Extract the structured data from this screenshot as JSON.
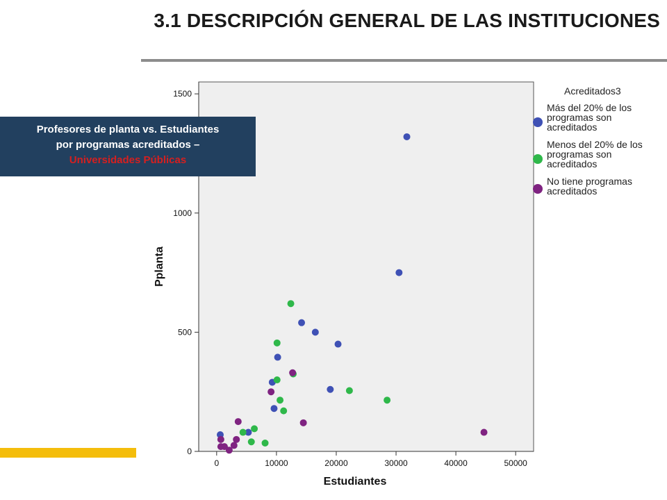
{
  "slide": {
    "title": "3.1 DESCRIPCIÓN GENERAL DE LAS INSTITUCIONES",
    "caption_line1": "Profesores de planta vs. Estudiantes",
    "caption_line2": "por programas acreditados –",
    "caption_highlight": "Universidades Públicas"
  },
  "colors": {
    "accent": "#f4bd0b",
    "caption_bg": "#22405f",
    "highlight": "#d61f1f",
    "plot_bg": "#efefef",
    "series_blue": "#3f51b5",
    "series_green": "#2fb84a",
    "series_purple": "#7f2381"
  },
  "chart_data": {
    "type": "scatter",
    "title": "",
    "xlabel": "Estudiantes",
    "ylabel": "Pplanta",
    "xlim": [
      -3000,
      53000
    ],
    "ylim": [
      0,
      1550
    ],
    "xticks": [
      0,
      10000,
      20000,
      30000,
      40000,
      50000
    ],
    "yticks": [
      0,
      500,
      1000,
      1500
    ],
    "grid": false,
    "legend_title": "Acreditados3",
    "legend_position": "right",
    "series": [
      {
        "name": "Más del 20% de los programas son acreditados",
        "legend_lines": [
          "Más del 20% de los",
          "programas son",
          "acreditados"
        ],
        "color": "#3f51b5",
        "points": [
          [
            31800,
            1320
          ],
          [
            30500,
            750
          ],
          [
            14200,
            540
          ],
          [
            16500,
            500
          ],
          [
            20300,
            450
          ],
          [
            10200,
            395
          ],
          [
            9300,
            290
          ],
          [
            19000,
            260
          ],
          [
            9600,
            180
          ],
          [
            5300,
            80
          ],
          [
            600,
            70
          ]
        ]
      },
      {
        "name": "Menos del 20% de los programas son acreditados",
        "legend_lines": [
          "Menos del 20% de los",
          "programas son",
          "acreditados"
        ],
        "color": "#2fb84a",
        "points": [
          [
            12400,
            620
          ],
          [
            10100,
            455
          ],
          [
            10100,
            300
          ],
          [
            12800,
            325
          ],
          [
            22200,
            255
          ],
          [
            28500,
            215
          ],
          [
            10600,
            215
          ],
          [
            11200,
            170
          ],
          [
            6300,
            95
          ],
          [
            4400,
            80
          ],
          [
            5800,
            40
          ],
          [
            8100,
            35
          ]
        ]
      },
      {
        "name": "No tiene programas acreditados",
        "legend_lines": [
          "No tiene programas",
          "acreditados"
        ],
        "color": "#7f2381",
        "points": [
          [
            12700,
            330
          ],
          [
            9100,
            250
          ],
          [
            3600,
            125
          ],
          [
            14500,
            120
          ],
          [
            44700,
            80
          ],
          [
            3300,
            50
          ],
          [
            700,
            50
          ],
          [
            2900,
            25
          ],
          [
            1300,
            20
          ],
          [
            700,
            20
          ],
          [
            2100,
            5
          ]
        ]
      }
    ]
  }
}
